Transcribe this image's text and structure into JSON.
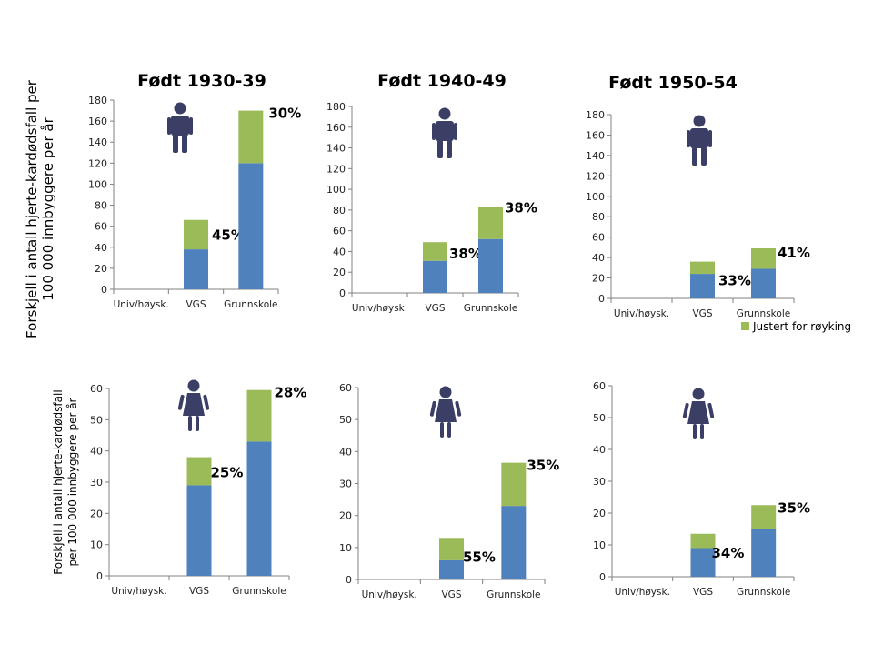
{
  "colors": {
    "base": "#4f81bd",
    "adjusted": "#9bbb59",
    "icon": "#3b3f66",
    "axis": "#808080"
  },
  "legend": {
    "label": "Justert for røyking",
    "placement": "bottom-right of top-right chart"
  },
  "ylabels": {
    "top": [
      "Forskjell i antall hjerte-kardødsfall per",
      "100 000 innbyggere per år"
    ],
    "bottom": [
      "Forskjell i antall hjerte-kardødsfall",
      "per 100 000 innbyggere per år"
    ]
  },
  "chart_data": [
    {
      "type": "bar",
      "stacked": true,
      "title": "Født 1930-39",
      "icon": "male-icon",
      "categories": [
        "Univ/høysk.",
        "VGS",
        "Grunnskole"
      ],
      "ylim": [
        0,
        180
      ],
      "yticks": [
        0,
        20,
        40,
        60,
        80,
        100,
        120,
        140,
        160,
        180
      ],
      "series": [
        {
          "values": [
            0,
            38,
            120
          ]
        },
        {
          "name": "Justert for røyking",
          "values": [
            0,
            28,
            50
          ]
        }
      ],
      "labels": [
        "",
        "45%",
        "30%"
      ]
    },
    {
      "type": "bar",
      "stacked": true,
      "title": "Født 1940-49",
      "icon": "male-icon",
      "categories": [
        "Univ/høysk.",
        "VGS",
        "Grunnskole"
      ],
      "ylim": [
        0,
        180
      ],
      "yticks": [
        0,
        20,
        40,
        60,
        80,
        100,
        120,
        140,
        160,
        180
      ],
      "series": [
        {
          "values": [
            0,
            31,
            52
          ]
        },
        {
          "name": "Justert for røyking",
          "values": [
            0,
            18,
            31
          ]
        }
      ],
      "labels": [
        "",
        "38%",
        "38%"
      ]
    },
    {
      "type": "bar",
      "stacked": true,
      "title": "Født 1950-54",
      "icon": "male-icon",
      "categories": [
        "Univ/høysk.",
        "VGS",
        "Grunnskole"
      ],
      "ylim": [
        0,
        180
      ],
      "yticks": [
        0,
        20,
        40,
        60,
        80,
        100,
        120,
        140,
        160,
        180
      ],
      "series": [
        {
          "values": [
            0,
            24,
            29
          ]
        },
        {
          "name": "Justert for røyking",
          "values": [
            0,
            12,
            20
          ]
        }
      ],
      "labels": [
        "",
        "33%",
        "41%"
      ]
    },
    {
      "type": "bar",
      "stacked": true,
      "title": "",
      "icon": "female-icon",
      "categories": [
        "Univ/høysk.",
        "VGS",
        "Grunnskole"
      ],
      "ylim": [
        0,
        60
      ],
      "yticks": [
        0,
        10,
        20,
        30,
        40,
        50,
        60
      ],
      "series": [
        {
          "values": [
            0,
            29,
            43
          ]
        },
        {
          "name": "Justert for røyking",
          "values": [
            0,
            9,
            16.5
          ]
        }
      ],
      "labels": [
        "",
        "25%",
        "28%"
      ]
    },
    {
      "type": "bar",
      "stacked": true,
      "title": "",
      "icon": "female-icon",
      "categories": [
        "Univ/høysk.",
        "VGS",
        "Grunnskole"
      ],
      "ylim": [
        0,
        60
      ],
      "yticks": [
        0,
        10,
        20,
        30,
        40,
        50,
        60
      ],
      "series": [
        {
          "values": [
            0,
            6,
            23
          ]
        },
        {
          "name": "Justert for røyking",
          "values": [
            0,
            7,
            13.5
          ]
        }
      ],
      "labels": [
        "",
        "55%",
        "35%"
      ]
    },
    {
      "type": "bar",
      "stacked": true,
      "title": "",
      "icon": "female-icon",
      "categories": [
        "Univ/høysk.",
        "VGS",
        "Grunnskole"
      ],
      "ylim": [
        0,
        60
      ],
      "yticks": [
        0,
        10,
        20,
        30,
        40,
        50,
        60
      ],
      "series": [
        {
          "values": [
            0,
            9,
            15
          ]
        },
        {
          "name": "Justert for røyking",
          "values": [
            0,
            4.5,
            7.5
          ]
        }
      ],
      "labels": [
        "",
        "34%",
        "35%"
      ]
    }
  ]
}
